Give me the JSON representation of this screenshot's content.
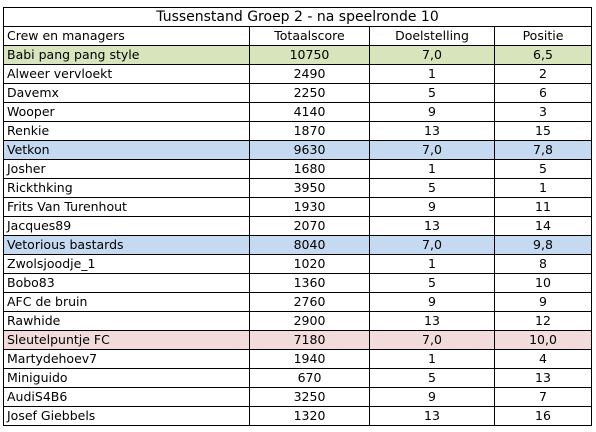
{
  "title": "Tussenstand Groep 2  - na speelronde 10",
  "headers": [
    "Crew en managers",
    "Totaalscore",
    "Doelstelling",
    "Positie"
  ],
  "colors": {
    "team_1": "#d8e4bc",
    "team_2": "#c5d9f1",
    "team_3": "#c5d9f1",
    "team_4": "#f2dcdb"
  },
  "teams": [
    {
      "name": "Babi pang pang style",
      "total": "10750",
      "goal": "7,0",
      "position": "6,5",
      "color": "#d8e4bc",
      "members": [
        {
          "name": "Alweer vervloekt",
          "total": "2490",
          "goal": "1",
          "position": "2"
        },
        {
          "name": "Davemx",
          "total": "2250",
          "goal": "5",
          "position": "6"
        },
        {
          "name": "Wooper",
          "total": "4140",
          "goal": "9",
          "position": "3"
        },
        {
          "name": "Renkie",
          "total": "1870",
          "goal": "13",
          "position": "15"
        }
      ]
    },
    {
      "name": "Vetkon",
      "total": "9630",
      "goal": "7,0",
      "position": "7,8",
      "color": "#c5d9f1",
      "members": [
        {
          "name": "Josher",
          "total": "1680",
          "goal": "1",
          "position": "5"
        },
        {
          "name": "Rickthking",
          "total": "3950",
          "goal": "5",
          "position": "1"
        },
        {
          "name": "Frits Van Turenhout",
          "total": "1930",
          "goal": "9",
          "position": "11"
        },
        {
          "name": "Jacques89",
          "total": "2070",
          "goal": "13",
          "position": "14"
        }
      ]
    },
    {
      "name": "Vetorious bastards",
      "total": "8040",
      "goal": "7,0",
      "position": "9,8",
      "color": "#c5d9f1",
      "members": [
        {
          "name": "Zwolsjoodje_1",
          "total": "1020",
          "goal": "1",
          "position": "8"
        },
        {
          "name": "Bobo83",
          "total": "1360",
          "goal": "5",
          "position": "10"
        },
        {
          "name": "AFC de bruin",
          "total": "2760",
          "goal": "9",
          "position": "9"
        },
        {
          "name": "Rawhide",
          "total": "2900",
          "goal": "13",
          "position": "12"
        }
      ]
    },
    {
      "name": "Sleutelpuntje FC",
      "total": "7180",
      "goal": "7,0",
      "position": "10,0",
      "color": "#f2dcdb",
      "members": [
        {
          "name": "Martydehoev7",
          "total": "1940",
          "goal": "1",
          "position": "4"
        },
        {
          "name": "Miniguido",
          "total": "670",
          "goal": "5",
          "position": "13"
        },
        {
          "name": "AudiS4B6",
          "total": "3250",
          "goal": "9",
          "position": "7"
        },
        {
          "name": "Josef Giebbels",
          "total": "1320",
          "goal": "13",
          "position": "16"
        }
      ]
    }
  ]
}
